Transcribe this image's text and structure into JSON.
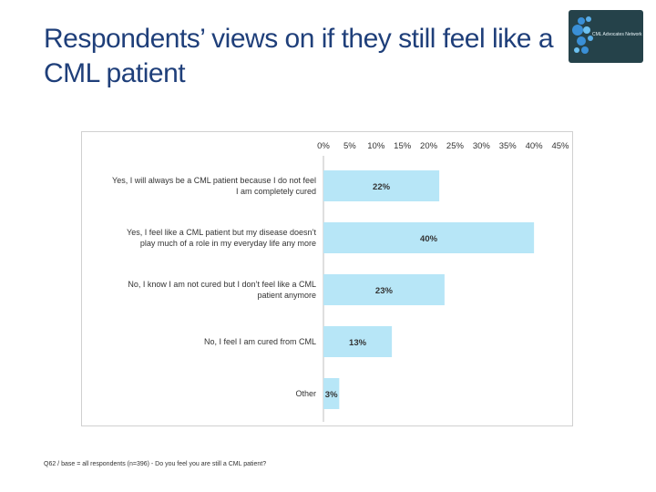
{
  "title_line1": "Respondents’ views on if they still feel like a",
  "title_line2": "CML patient",
  "logo": {
    "text": "CML Advocates Network"
  },
  "footnote": "Q62 / base = all respondents (n=396) - Do you feel you are still a CML patient?",
  "colors": {
    "bar": "#b7e6f7",
    "title": "#1f3f7a",
    "logo_bg": "#25424a",
    "logo_circles": "#3a8fd6"
  },
  "chart_data": {
    "type": "bar",
    "orientation": "horizontal",
    "axis_position": "top",
    "xlim": [
      0,
      45
    ],
    "ticks": [
      "0%",
      "5%",
      "10%",
      "15%",
      "20%",
      "25%",
      "30%",
      "35%",
      "40%",
      "45%"
    ],
    "tick_values": [
      0,
      5,
      10,
      15,
      20,
      25,
      30,
      35,
      40,
      45
    ],
    "categories": [
      [
        "Yes, I will always be a CML patient because I do not feel",
        "I am completely cured"
      ],
      [
        "Yes, I feel like a CML patient but my disease doesn’t",
        "play much of a role in my everyday life any more"
      ],
      [
        "No, I know I am not cured but I don’t feel like a CML",
        "patient anymore"
      ],
      [
        "No, I feel I am cured from CML"
      ],
      [
        "Other"
      ]
    ],
    "values": [
      22,
      40,
      23,
      13,
      3
    ],
    "labels": [
      "22%",
      "40%",
      "23%",
      "13%",
      "3%"
    ]
  }
}
